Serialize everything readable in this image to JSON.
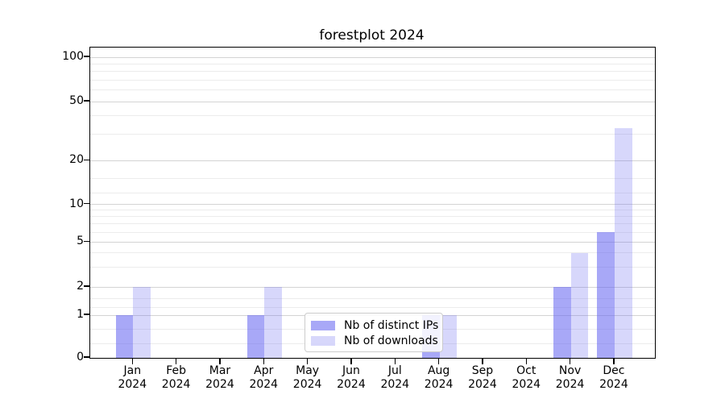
{
  "title": "forestplot 2024",
  "chart_data": {
    "type": "bar",
    "title": "forestplot 2024",
    "categories": [
      "Jan",
      "Feb",
      "Mar",
      "Apr",
      "May",
      "Jun",
      "Jul",
      "Aug",
      "Sep",
      "Oct",
      "Nov",
      "Dec"
    ],
    "category_year": "2024",
    "series": [
      {
        "name": "Nb of distinct IPs",
        "values": [
          1,
          0,
          0,
          1,
          0,
          0,
          0,
          1,
          0,
          0,
          2,
          6
        ],
        "color": "#6161f1",
        "opacity": 0.55
      },
      {
        "name": "Nb of downloads",
        "values": [
          2,
          0,
          0,
          2,
          0,
          0,
          0,
          1,
          0,
          0,
          4,
          33
        ],
        "color": "#6161f1",
        "opacity": 0.25
      }
    ],
    "xlabel": "",
    "ylabel": "",
    "y_ticks": [
      0,
      1,
      2,
      5,
      10,
      20,
      50,
      100
    ],
    "ylim": [
      0,
      110
    ],
    "yscale": "log-like",
    "grid": true,
    "legend_position": "bottom-center-inside"
  },
  "colors": {
    "bar_base": "#6161f1",
    "grid_major": "#d4d4d4",
    "grid_minor": "#ececec",
    "spine": "#000000",
    "legend_border": "#cccccc"
  }
}
